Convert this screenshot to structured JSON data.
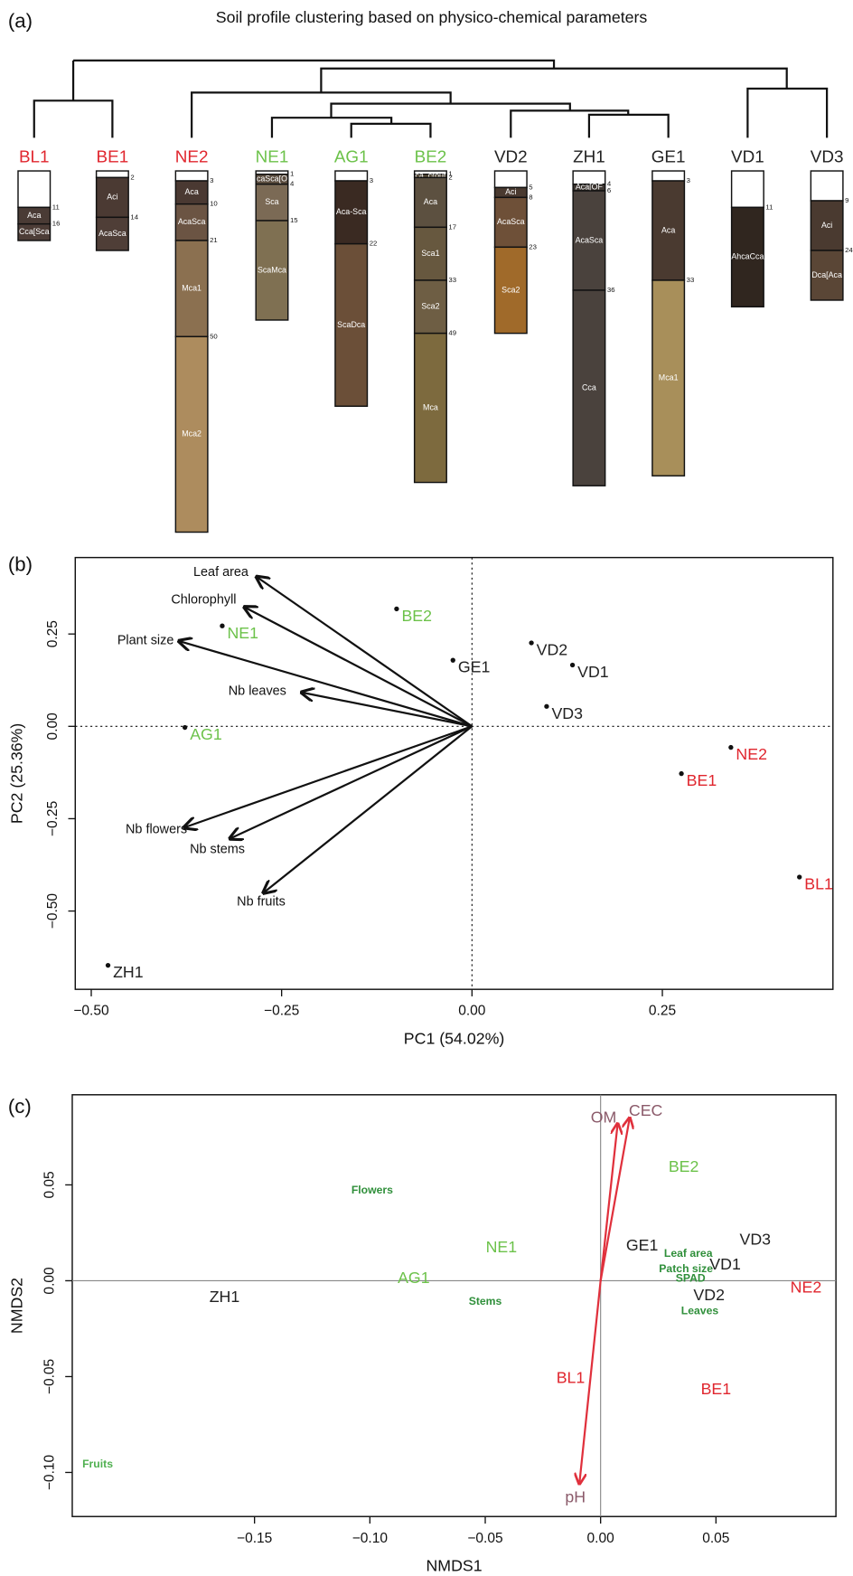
{
  "chart_data": [
    {
      "type": "soil-profiles",
      "panel": "(a)",
      "title": "Soil profile clustering based on physico-chemical parameters",
      "profiles": [
        {
          "name": "BL1",
          "color": "#e0262e",
          "boundaries": [
            11,
            16
          ],
          "bottom": 21,
          "horizons": [
            null,
            "Aca",
            "Cca[Sca"
          ],
          "horizon_colors": [
            "#ffffff",
            "#4a3b35",
            "#4d3d37"
          ]
        },
        {
          "name": "BE1",
          "color": "#e0262e",
          "boundaries": [
            2,
            14
          ],
          "bottom": 24,
          "horizons": [
            null,
            "Aci",
            "AcaSca"
          ],
          "horizon_colors": [
            "#ffffff",
            "#4b3a33",
            "#4f3e37"
          ]
        },
        {
          "name": "NE2",
          "color": "#e0262e",
          "boundaries": [
            3,
            10,
            21,
            50
          ],
          "bottom": 109,
          "horizons": [
            null,
            "Aca",
            "AcaSca",
            "Mca1",
            "Mca2"
          ],
          "horizon_colors": [
            "#ffffff",
            "#4a3932",
            "#6b5443",
            "#8b7050",
            "#ad8c5e"
          ]
        },
        {
          "name": "NE1",
          "color": "#6cc24a",
          "boundaries": [
            1,
            4,
            15
          ],
          "bottom": 45,
          "horizons": [
            null,
            "caSca[O",
            "Sca",
            "ScaMca"
          ],
          "horizon_colors": [
            "#ffffff",
            "#5a4c3e",
            "#7b6a55",
            "#7f7052"
          ]
        },
        {
          "name": "AG1",
          "color": "#6cc24a",
          "boundaries": [
            3,
            22
          ],
          "bottom": 71,
          "horizons": [
            null,
            "Aca-Sca",
            "ScaDca"
          ],
          "horizon_colors": [
            "#ffffff",
            "#3a2a22",
            "#6b4f38"
          ]
        },
        {
          "name": "BE2",
          "color": "#6cc24a",
          "boundaries": [
            1,
            2,
            17,
            33,
            49
          ],
          "bottom": 94,
          "horizons": [
            null,
            "ca_crout",
            "Aca",
            "Sca1",
            "Sca2",
            "Mca"
          ],
          "horizon_colors": [
            "#ffffff",
            "#5a4e3a",
            "#5c5040",
            "#67583f",
            "#6e5e44",
            "#7d6a3e"
          ]
        },
        {
          "name": "VD2",
          "color": "#222222",
          "boundaries": [
            5,
            8,
            23
          ],
          "bottom": 49,
          "horizons": [
            null,
            "Aci",
            "AcaSca",
            "Sca2"
          ],
          "horizon_colors": [
            "#ffffff",
            "#4a3a30",
            "#6e5038",
            "#a06a2a"
          ]
        },
        {
          "name": "ZH1",
          "color": "#222222",
          "boundaries": [
            4,
            6,
            36
          ],
          "bottom": 95,
          "horizons": [
            null,
            "Aca[OF",
            "AcaSca",
            "Cca"
          ],
          "horizon_colors": [
            "#ffffff",
            "#3f3833",
            "#4a423d",
            "#4a423d"
          ]
        },
        {
          "name": "GE1",
          "color": "#222222",
          "boundaries": [
            3,
            33
          ],
          "bottom": 92,
          "horizons": [
            null,
            "Aca",
            "Mca1"
          ],
          "horizon_colors": [
            "#ffffff",
            "#4a3a30",
            "#a88f5a"
          ]
        },
        {
          "name": "VD1",
          "color": "#222222",
          "boundaries": [
            11
          ],
          "bottom": 41,
          "horizons": [
            null,
            "AhcaCca"
          ],
          "horizon_colors": [
            "#ffffff",
            "#30261f"
          ]
        },
        {
          "name": "VD3",
          "color": "#222222",
          "boundaries": [
            9,
            24
          ],
          "bottom": 39,
          "horizons": [
            null,
            "Aci",
            "Dca[Aca"
          ],
          "horizon_colors": [
            "#ffffff",
            "#4a3a30",
            "#5a4636"
          ]
        }
      ]
    },
    {
      "type": "biplot",
      "panel": "(b)",
      "xlabel": "PC1 (54.02%)",
      "ylabel": "PC2 (25.36%)",
      "xlim": [
        -0.521,
        0.474
      ],
      "ylim": [
        -0.712,
        0.457
      ],
      "xticks": [
        {
          "value": -0.5,
          "label": "−0.50"
        },
        {
          "value": -0.25,
          "label": "−0.25"
        },
        {
          "value": 0,
          "label": "0.00"
        },
        {
          "value": 0.25,
          "label": "0.25"
        }
      ],
      "yticks": [
        {
          "value": -0.5,
          "label": "−0.50"
        },
        {
          "value": -0.25,
          "label": "−0.25"
        },
        {
          "value": 0,
          "label": "0.00"
        },
        {
          "value": 0.25,
          "label": "0.25"
        }
      ],
      "zero_lines": true,
      "points": [
        {
          "name": "BE2",
          "color": "#6cc24a",
          "x": -0.099,
          "y": 0.318
        },
        {
          "name": "NE1",
          "color": "#6cc24a",
          "x": -0.328,
          "y": 0.272
        },
        {
          "name": "AG1",
          "color": "#6cc24a",
          "x": -0.377,
          "y": -0.003
        },
        {
          "name": "GE1",
          "color": "#222222",
          "x": -0.025,
          "y": 0.179
        },
        {
          "name": "VD2",
          "color": "#222222",
          "x": 0.078,
          "y": 0.226
        },
        {
          "name": "VD1",
          "color": "#222222",
          "x": 0.132,
          "y": 0.166
        },
        {
          "name": "VD3",
          "color": "#222222",
          "x": 0.098,
          "y": 0.054
        },
        {
          "name": "NE2",
          "color": "#e0262e",
          "x": 0.34,
          "y": -0.057
        },
        {
          "name": "BE1",
          "color": "#e0262e",
          "x": 0.275,
          "y": -0.128
        },
        {
          "name": "BL1",
          "color": "#e0262e",
          "x": 0.43,
          "y": -0.408
        },
        {
          "name": "ZH1",
          "color": "#222222",
          "x": -0.478,
          "y": -0.647
        }
      ],
      "vectors": [
        {
          "name": "Leaf area",
          "x": -0.283,
          "y": 0.405
        },
        {
          "name": "Chlorophyll",
          "x": -0.299,
          "y": 0.323
        },
        {
          "name": "Plant size",
          "x": -0.385,
          "y": 0.231
        },
        {
          "name": "Nb leaves",
          "x": -0.224,
          "y": 0.092
        },
        {
          "name": "Nb flowers",
          "x": -0.378,
          "y": -0.274
        },
        {
          "name": "Nb stems",
          "x": -0.318,
          "y": -0.304
        },
        {
          "name": "Nb fruits",
          "x": -0.274,
          "y": -0.451
        }
      ]
    },
    {
      "type": "ordination",
      "panel": "(c)",
      "xlabel": "NMDS1",
      "ylabel": "NMDS2",
      "xlim": [
        -0.229,
        0.102
      ],
      "ylim": [
        -0.123,
        0.097
      ],
      "xticks": [
        {
          "value": -0.15,
          "label": "−0.15"
        },
        {
          "value": -0.1,
          "label": "−0.10"
        },
        {
          "value": -0.05,
          "label": "−0.05"
        },
        {
          "value": 0,
          "label": "0.00"
        },
        {
          "value": 0.05,
          "label": "0.05"
        }
      ],
      "yticks": [
        {
          "value": -0.1,
          "label": "−0.10"
        },
        {
          "value": -0.05,
          "label": "−0.05"
        },
        {
          "value": 0,
          "label": "0.00"
        },
        {
          "value": 0.05,
          "label": "0.05"
        }
      ],
      "sites": [
        {
          "name": "ZH1",
          "color": "#222222",
          "x": -0.163,
          "y": -0.009
        },
        {
          "name": "AG1",
          "color": "#6cc24a",
          "x": -0.081,
          "y": 0.001
        },
        {
          "name": "NE1",
          "color": "#6cc24a",
          "x": -0.043,
          "y": 0.017
        },
        {
          "name": "GE1",
          "color": "#222222",
          "x": 0.018,
          "y": 0.018
        },
        {
          "name": "BE2",
          "color": "#6cc24a",
          "x": 0.036,
          "y": 0.059
        },
        {
          "name": "VD3",
          "color": "#222222",
          "x": 0.067,
          "y": 0.021
        },
        {
          "name": "VD1",
          "color": "#222222",
          "x": 0.054,
          "y": 0.008
        },
        {
          "name": "VD2",
          "color": "#222222",
          "x": 0.047,
          "y": -0.008
        },
        {
          "name": "NE2",
          "color": "#e0262e",
          "x": 0.089,
          "y": -0.004
        },
        {
          "name": "BL1",
          "color": "#e0262e",
          "x": -0.013,
          "y": -0.051
        },
        {
          "name": "BE1",
          "color": "#e0262e",
          "x": 0.05,
          "y": -0.057
        }
      ],
      "species": [
        {
          "name": "Flowers",
          "color": "#2f8f3a",
          "x": -0.099,
          "y": 0.047
        },
        {
          "name": "Stems",
          "color": "#2f8f3a",
          "x": -0.05,
          "y": -0.011
        },
        {
          "name": "Leaf area",
          "color": "#2f8f3a",
          "x": 0.038,
          "y": 0.014
        },
        {
          "name": "Patch size",
          "color": "#2f8f3a",
          "x": 0.037,
          "y": 0.006
        },
        {
          "name": "SPAD",
          "color": "#2f8f3a",
          "x": 0.039,
          "y": 0.001
        },
        {
          "name": "Leaves",
          "color": "#2f8f3a",
          "x": 0.043,
          "y": -0.016
        },
        {
          "name": "Fruits",
          "color": "#4fb050",
          "x": -0.218,
          "y": -0.096
        }
      ],
      "vector_color": "#e0303c",
      "vector_label_color": "#8b5a6a",
      "vectors": [
        {
          "name": "OM",
          "x": 0.0074,
          "y": 0.082
        },
        {
          "name": "CEC",
          "x": 0.0126,
          "y": 0.085
        },
        {
          "name": "pH",
          "x": -0.0092,
          "y": -0.106
        }
      ]
    }
  ]
}
